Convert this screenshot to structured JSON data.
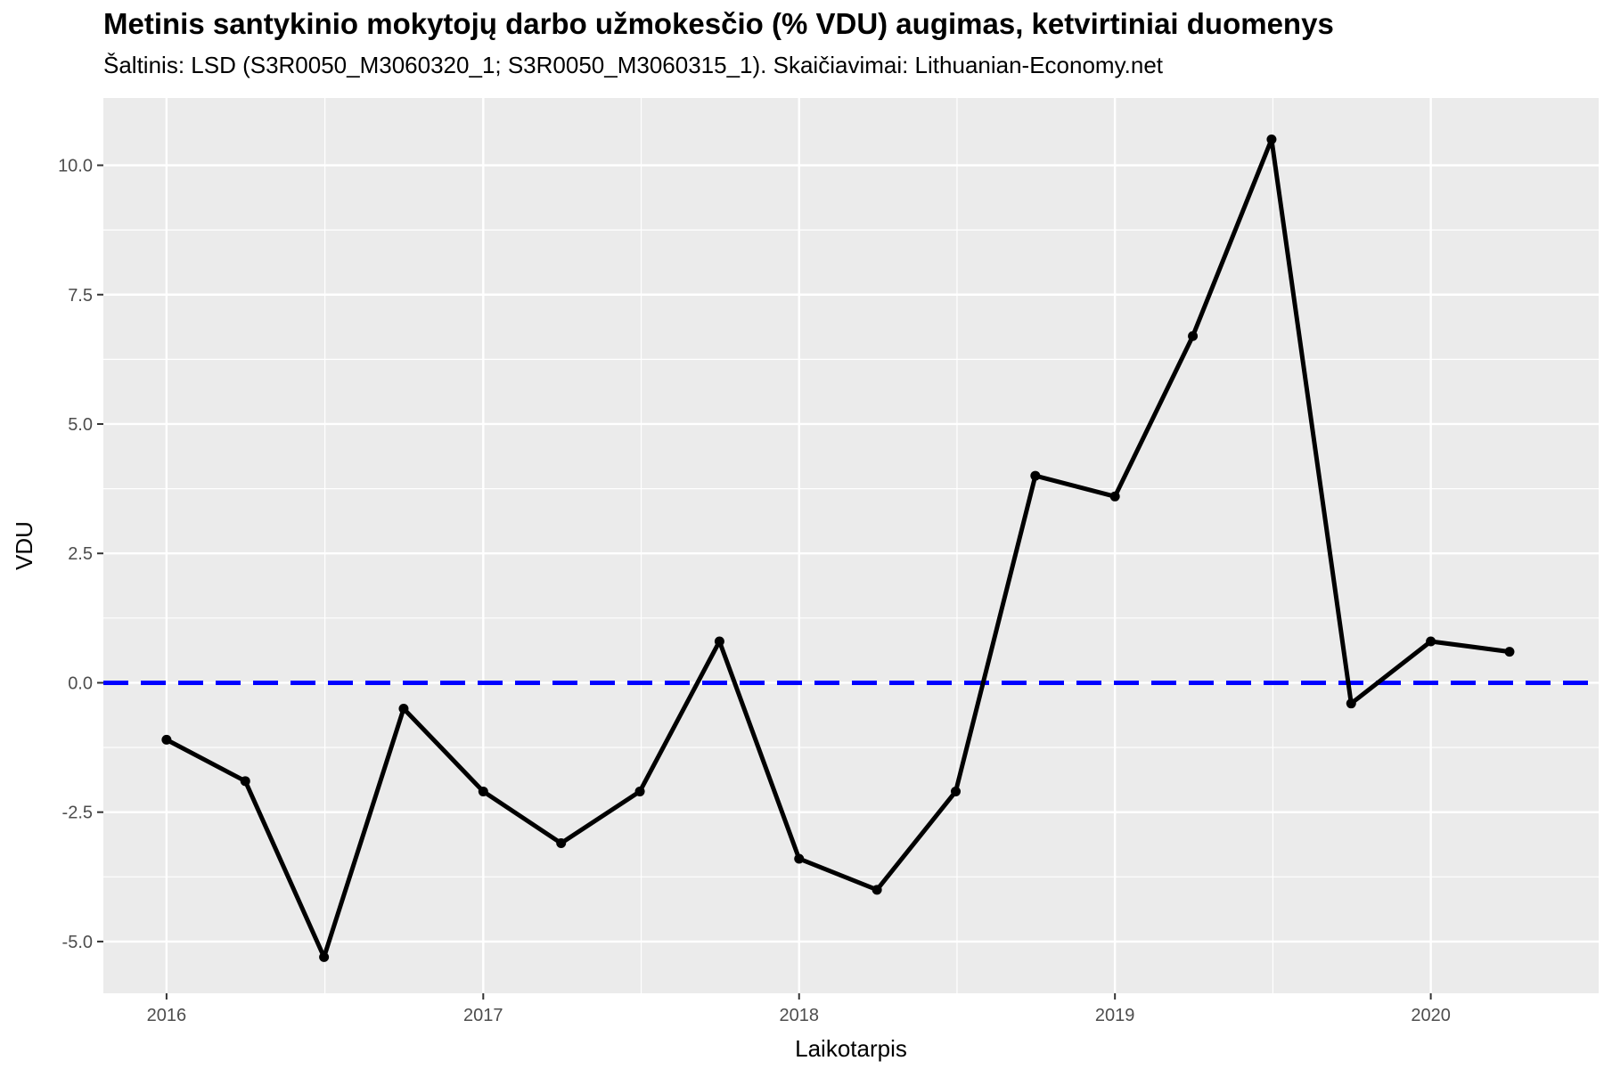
{
  "chart_data": {
    "type": "line",
    "title": "Metinis santykinio mokytojų darbo užmokesčio (% VDU) augimas, ketvirtiniai duomenys",
    "subtitle": "Šaltinis: LSD (S3R0050_M3060320_1; S3R0050_M3060315_1). Skaičiavimai: Lithuanian-Economy.net",
    "xlabel": "Laikotarpis",
    "ylabel": "VDU",
    "x": [
      "2016-01-01",
      "2016-04-01",
      "2016-07-01",
      "2016-10-01",
      "2017-01-01",
      "2017-04-01",
      "2017-07-01",
      "2017-10-01",
      "2018-01-01",
      "2018-04-01",
      "2018-07-01",
      "2018-10-01",
      "2019-01-01",
      "2019-04-01",
      "2019-07-01",
      "2019-10-01",
      "2020-01-01",
      "2020-04-01"
    ],
    "values": [
      -1.1,
      -1.9,
      -5.3,
      -0.5,
      -2.1,
      -3.1,
      -2.1,
      0.8,
      -3.4,
      -4.0,
      -2.1,
      4.0,
      3.6,
      6.7,
      10.5,
      -0.4,
      0.8,
      0.6
    ],
    "ylim": [
      -6.0,
      11.3
    ],
    "xlim": [
      "2015-10-20",
      "2020-07-13"
    ],
    "yticks": [
      -5.0,
      -2.5,
      0.0,
      2.5,
      5.0,
      7.5,
      10.0
    ],
    "ytick_labels": [
      "-5.0",
      "-2.5",
      "0.0",
      "2.5",
      "5.0",
      "7.5",
      "10.0"
    ],
    "xticks": [
      "2016-01-01",
      "2017-01-01",
      "2018-01-01",
      "2019-01-01",
      "2020-01-01"
    ],
    "xtick_labels": [
      "2016",
      "2017",
      "2018",
      "2019",
      "2020"
    ],
    "reference_line": {
      "y": 0.0,
      "style": "dashed",
      "color": "#0000ff"
    },
    "line_color": "#000000",
    "panel_background": "#ebebeb",
    "grid_color": "#ffffff",
    "grid": true,
    "legend": "none"
  }
}
